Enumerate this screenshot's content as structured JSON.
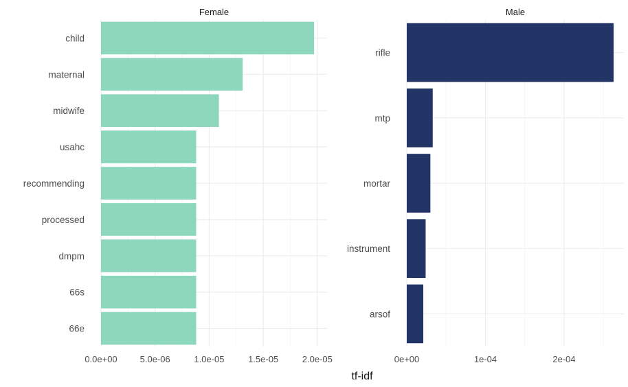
{
  "chart_data": {
    "type": "bar",
    "orientation": "horizontal",
    "xlabel": "tf-idf",
    "grid": true,
    "panels": [
      {
        "strip_label": "Female",
        "color": "#8dd7bd",
        "categories": [
          "child",
          "maternal",
          "midwife",
          "usahc",
          "recommending",
          "processed",
          "dmpm",
          "66s",
          "66e"
        ],
        "values": [
          1.97e-05,
          1.31e-05,
          1.09e-05,
          8.8e-06,
          8.8e-06,
          8.8e-06,
          8.8e-06,
          8.8e-06,
          8.8e-06
        ],
        "xlim": [
          0,
          2.09e-05
        ],
        "x_ticks": [
          0,
          5e-06,
          1e-05,
          1.5e-05,
          2e-05
        ],
        "x_tick_labels": [
          "0.0e+00",
          "5.0e-06",
          "1.0e-05",
          "1.5e-05",
          "2.0e-05"
        ]
      },
      {
        "strip_label": "Male",
        "color": "#233567",
        "categories": [
          "rifle",
          "mtp",
          "mortar",
          "instrument",
          "arsof"
        ],
        "values": [
          0.000263,
          3.3e-05,
          3e-05,
          2.4e-05,
          2.1e-05
        ],
        "xlim": [
          0,
          0.000276
        ],
        "x_ticks": [
          0,
          0.0001,
          0.0002
        ],
        "x_tick_labels": [
          "0e+00",
          "1e-04",
          "2e-04"
        ]
      }
    ]
  }
}
